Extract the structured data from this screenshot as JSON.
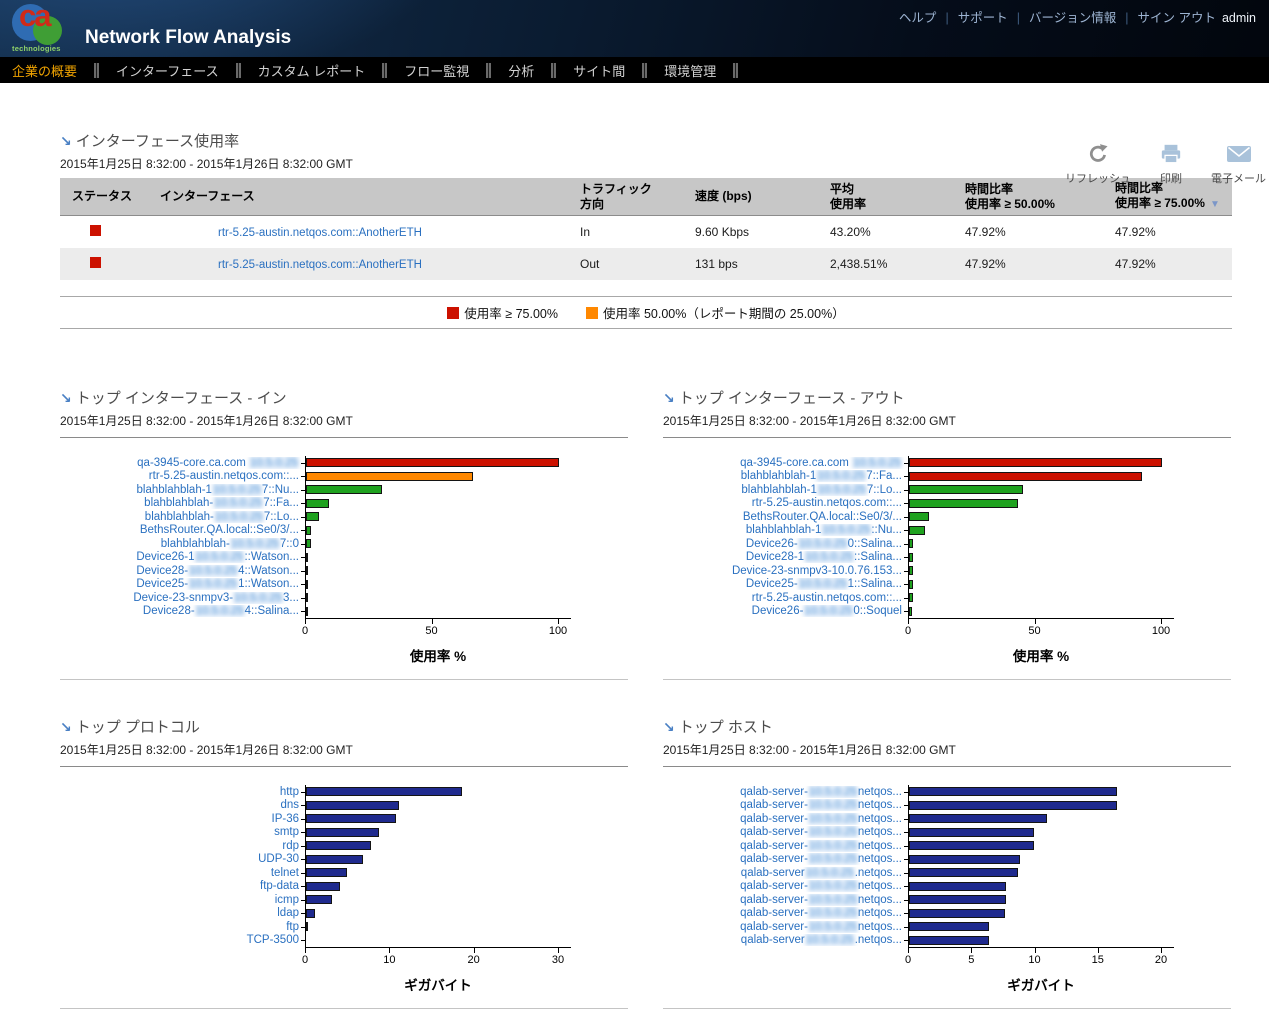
{
  "header": {
    "logo": {
      "text": "ca",
      "subtext": "technologies"
    },
    "app_title": "Network Flow Analysis",
    "links": [
      {
        "label": "ヘルプ"
      },
      {
        "label": "サポート"
      },
      {
        "label": "バージョン情報"
      },
      {
        "label": "サイン アウト"
      }
    ],
    "user": "admin"
  },
  "nav": {
    "items": [
      {
        "label": "企業の概要",
        "active": true
      },
      {
        "label": "インターフェース",
        "active": false
      },
      {
        "label": "カスタム レポート",
        "active": false
      },
      {
        "label": "フロー監視",
        "active": false
      },
      {
        "label": "分析",
        "active": false
      },
      {
        "label": "サイト間",
        "active": false
      },
      {
        "label": "環境管理",
        "active": false
      }
    ]
  },
  "toolbar": {
    "items": [
      {
        "icon": "refresh-icon",
        "label": "リフレッシュ"
      },
      {
        "icon": "printer-icon",
        "label": "印刷"
      },
      {
        "icon": "email-icon",
        "label": "電子メール"
      }
    ]
  },
  "colors": {
    "bar_red": "#cc1100",
    "bar_orange": "#ff8800",
    "bar_green": "#1fa21f",
    "bar_navy": "#1f2a8e",
    "link_blue": "#2a70c0",
    "nav_active": "#f0a300"
  },
  "utilization": {
    "title": "インターフェース使用率",
    "period": "2015年1月25日 8:32:00 - 2015年1月26日 8:32:00 GMT",
    "table": {
      "columns": [
        {
          "line1": "ステータス",
          "line2": ""
        },
        {
          "line1": "インターフェース",
          "line2": ""
        },
        {
          "line1": "トラフィック",
          "line2": "方向"
        },
        {
          "line1": "速度 (bps)",
          "line2": ""
        },
        {
          "line1": "平均",
          "line2": "使用率"
        },
        {
          "line1": "時間比率",
          "line2": "使用率 ≥ 50.00%"
        },
        {
          "line1": "時間比率",
          "line2": "使用率 ≥ 75.00%",
          "sorted": "desc"
        }
      ],
      "rows": [
        {
          "status_color": "#cc1100",
          "interface": "rtr-5.25-austin.netqos.com::AnotherETH",
          "direction": "In",
          "rate": "9.60 Kbps",
          "avg_utilization": "43.20%",
          "time_pct_50": "47.92%",
          "time_pct_75": "47.92%"
        },
        {
          "status_color": "#cc1100",
          "interface": "rtr-5.25-austin.netqos.com::AnotherETH",
          "direction": "Out",
          "rate": "131 bps",
          "avg_utilization": "2,438.51%",
          "time_pct_50": "47.92%",
          "time_pct_75": "47.92%"
        }
      ]
    },
    "legend": [
      {
        "color": "#cc1100",
        "label": "使用率 ≥ 75.00%"
      },
      {
        "color": "#ff8800",
        "label": "使用率 50.00%（レポート期間の 25.00%）"
      }
    ]
  },
  "chart_data": [
    {
      "type": "bar",
      "orientation": "horizontal",
      "title": "トップ インターフェース - イン",
      "period": "2015年1月25日 8:32:00 - 2015年1月26日 8:32:00 GMT",
      "xlabel": "使用率 %",
      "xlim": [
        0,
        100
      ],
      "xticks": [
        0,
        50,
        100
      ],
      "bars": [
        {
          "pre": "qa-3945-core.ca.com ",
          "blur": "10.5.0.25",
          "post": "",
          "value": 100,
          "color": "#cc1100"
        },
        {
          "pre": "rtr-5.25-austin.netqos.com::...",
          "blur": "",
          "post": "",
          "value": 66,
          "color": "#ff8800"
        },
        {
          "pre": "blahblahblah-1",
          "blur": "10.5.0.25",
          "post": "7::Nu...",
          "value": 30,
          "color": "#1fa21f"
        },
        {
          "pre": "blahblahblah-",
          "blur": "10.5.0.25",
          "post": "7::Fa...",
          "value": 9,
          "color": "#1fa21f"
        },
        {
          "pre": "blahblahblah-",
          "blur": "10.5.0.25",
          "post": "7::Lo...",
          "value": 5,
          "color": "#1fa21f"
        },
        {
          "pre": "BethsRouter.QA.local::Se0/3/...",
          "blur": "",
          "post": "",
          "value": 2,
          "color": "#1fa21f"
        },
        {
          "pre": "blahblahblah-",
          "blur": "10.5.0.25",
          "post": "7::0",
          "value": 2,
          "color": "#1fa21f"
        },
        {
          "pre": "Device26-1",
          "blur": "10.5.0.25",
          "post": "::Watson...",
          "value": 0.4,
          "color": "#1fa21f"
        },
        {
          "pre": "Device28-",
          "blur": "10.5.0.25",
          "post": "4::Watson...",
          "value": 0.4,
          "color": "#1fa21f"
        },
        {
          "pre": "Device25-",
          "blur": "10.5.0.25",
          "post": "1::Watson...",
          "value": 0.4,
          "color": "#1fa21f"
        },
        {
          "pre": "Device-23-snmpv3-",
          "blur": "10.5.0.25",
          "post": "3...",
          "value": 0.4,
          "color": "#1fa21f"
        },
        {
          "pre": "Device28-",
          "blur": "10.5.0.25",
          "post": "4::Salina...",
          "value": 0.8,
          "color": "#1fa21f"
        }
      ]
    },
    {
      "type": "bar",
      "orientation": "horizontal",
      "title": "トップ インターフェース - アウト",
      "period": "2015年1月25日 8:32:00 - 2015年1月26日 8:32:00 GMT",
      "xlabel": "使用率 %",
      "xlim": [
        0,
        100
      ],
      "xticks": [
        0,
        50,
        100
      ],
      "bars": [
        {
          "pre": "qa-3945-core.ca.com ",
          "blur": "10.5.0.25",
          "post": "",
          "value": 100,
          "color": "#cc1100"
        },
        {
          "pre": "blahblahblah-1",
          "blur": "10.5.0.25",
          "post": "7::Fa...",
          "value": 92,
          "color": "#cc1100"
        },
        {
          "pre": "blahblahblah-1",
          "blur": "10.5.0.25",
          "post": "7::Lo...",
          "value": 45,
          "color": "#1fa21f"
        },
        {
          "pre": "rtr-5.25-austin.netqos.com::...",
          "blur": "",
          "post": "",
          "value": 43,
          "color": "#1fa21f"
        },
        {
          "pre": "BethsRouter.QA.local::Se0/3/...",
          "blur": "",
          "post": "",
          "value": 8,
          "color": "#1fa21f"
        },
        {
          "pre": "blahblahblah-1",
          "blur": "10.5.0.25",
          "post": "::Nu...",
          "value": 6.5,
          "color": "#1fa21f"
        },
        {
          "pre": "Device26-",
          "blur": "10.5.0.25",
          "post": "0::Salina...",
          "value": 1.5,
          "color": "#1fa21f"
        },
        {
          "pre": "Device28-1",
          "blur": "10.5.0.25",
          "post": "::Salina...",
          "value": 1.5,
          "color": "#1fa21f"
        },
        {
          "pre": "Device-23-snmpv3-10.0.76.153...",
          "blur": "",
          "post": "",
          "value": 1.5,
          "color": "#1fa21f"
        },
        {
          "pre": "Device25-",
          "blur": "10.5.0.25",
          "post": "1::Salina...",
          "value": 1.5,
          "color": "#1fa21f"
        },
        {
          "pre": "rtr-5.25-austin.netqos.com::...",
          "blur": "",
          "post": "",
          "value": 1.5,
          "color": "#1fa21f"
        },
        {
          "pre": "Device26-",
          "blur": "10.5.0.25",
          "post": "0::Soquel",
          "value": 1,
          "color": "#1fa21f"
        }
      ]
    },
    {
      "type": "bar",
      "orientation": "horizontal",
      "title": "トップ プロトコル",
      "period": "2015年1月25日 8:32:00 - 2015年1月26日 8:32:00 GMT",
      "xlabel": "ギガバイト",
      "xlim": [
        0,
        30
      ],
      "xticks": [
        0,
        10,
        20,
        30
      ],
      "bars": [
        {
          "pre": "http",
          "blur": "",
          "post": "",
          "value": 18.5,
          "color": "#1f2a8e"
        },
        {
          "pre": "dns",
          "blur": "",
          "post": "",
          "value": 11,
          "color": "#1f2a8e"
        },
        {
          "pre": "IP-36",
          "blur": "",
          "post": "",
          "value": 10.7,
          "color": "#1f2a8e"
        },
        {
          "pre": "smtp",
          "blur": "",
          "post": "",
          "value": 8.7,
          "color": "#1f2a8e"
        },
        {
          "pre": "rdp",
          "blur": "",
          "post": "",
          "value": 7.7,
          "color": "#1f2a8e"
        },
        {
          "pre": "UDP-30",
          "blur": "",
          "post": "",
          "value": 6.8,
          "color": "#1f2a8e"
        },
        {
          "pre": "telnet",
          "blur": "",
          "post": "",
          "value": 4.9,
          "color": "#1f2a8e"
        },
        {
          "pre": "ftp-data",
          "blur": "",
          "post": "",
          "value": 4,
          "color": "#1f2a8e"
        },
        {
          "pre": "icmp",
          "blur": "",
          "post": "",
          "value": 3.1,
          "color": "#1f2a8e"
        },
        {
          "pre": "ldap",
          "blur": "",
          "post": "",
          "value": 1.1,
          "color": "#1f2a8e"
        },
        {
          "pre": "ftp",
          "blur": "",
          "post": "",
          "value": 0.2,
          "color": "#1f2a8e"
        },
        {
          "pre": "TCP-3500",
          "blur": "",
          "post": "",
          "value": 0,
          "color": "#1f2a8e"
        }
      ]
    },
    {
      "type": "bar",
      "orientation": "horizontal",
      "title": "トップ ホスト",
      "period": "2015年1月25日 8:32:00 - 2015年1月26日 8:32:00 GMT",
      "xlabel": "ギガバイト",
      "xlim": [
        0,
        20
      ],
      "xticks": [
        0,
        5,
        10,
        15,
        20
      ],
      "bars": [
        {
          "pre": "qalab-server-",
          "blur": "10.5.0.25",
          "post": "netqos...",
          "value": 16.4,
          "color": "#1f2a8e"
        },
        {
          "pre": "qalab-server-",
          "blur": "10.5.0.25",
          "post": "netqos...",
          "value": 16.4,
          "color": "#1f2a8e"
        },
        {
          "pre": "qalab-server-",
          "blur": "10.5.0.25",
          "post": "netqos...",
          "value": 10.9,
          "color": "#1f2a8e"
        },
        {
          "pre": "qalab-server-",
          "blur": "10.5.0.25",
          "post": "netqos...",
          "value": 9.9,
          "color": "#1f2a8e"
        },
        {
          "pre": "qalab-server-",
          "blur": "10.5.0.25",
          "post": "netqos...",
          "value": 9.9,
          "color": "#1f2a8e"
        },
        {
          "pre": "qalab-server-",
          "blur": "10.5.0.25",
          "post": "netqos...",
          "value": 8.8,
          "color": "#1f2a8e"
        },
        {
          "pre": "qalab-server",
          "blur": "10.5.0.25",
          "post": ".netqos...",
          "value": 8.6,
          "color": "#1f2a8e"
        },
        {
          "pre": "qalab-server-",
          "blur": "10.5.0.25",
          "post": "netqos...",
          "value": 7.7,
          "color": "#1f2a8e"
        },
        {
          "pre": "qalab-server-",
          "blur": "10.5.0.25",
          "post": "netqos...",
          "value": 7.7,
          "color": "#1f2a8e"
        },
        {
          "pre": "qalab-server-",
          "blur": "10.5.0.25",
          "post": "netqos...",
          "value": 7.6,
          "color": "#1f2a8e"
        },
        {
          "pre": "qalab-server-",
          "blur": "10.5.0.25",
          "post": "netqos...",
          "value": 6.3,
          "color": "#1f2a8e"
        },
        {
          "pre": "qalab-server",
          "blur": "10.5.0.25",
          "post": ".netqos...",
          "value": 6.3,
          "color": "#1f2a8e"
        }
      ]
    }
  ]
}
